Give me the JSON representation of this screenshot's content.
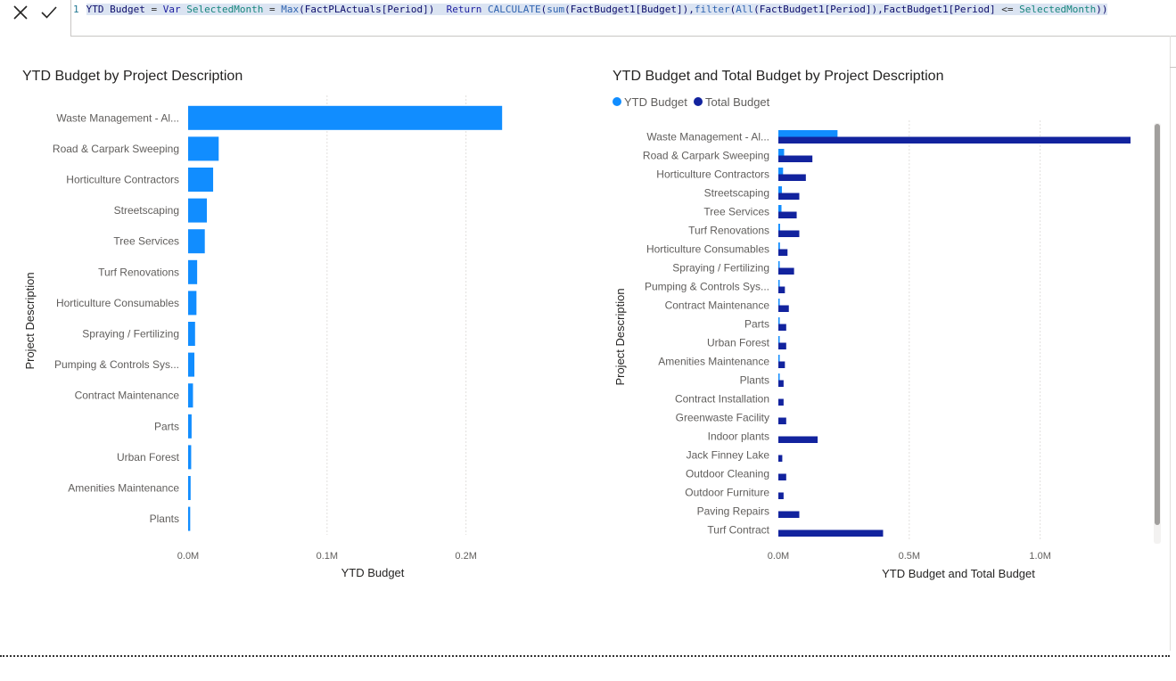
{
  "formula_bar": {
    "cancel_icon": "close-icon",
    "commit_icon": "check-icon",
    "line_number": "1",
    "tokens": [
      {
        "t": "YTD Budget",
        "c": "tk-id"
      },
      {
        "t": " = ",
        "c": "tk-op"
      },
      {
        "t": "Var",
        "c": "tk-kw"
      },
      {
        "t": " SelectedMonth",
        "c": "tk-var"
      },
      {
        "t": " = ",
        "c": "tk-op"
      },
      {
        "t": "Max",
        "c": "tk-fn"
      },
      {
        "t": "(FactPLActuals[Period])  ",
        "c": "tk-id"
      },
      {
        "t": "Return",
        "c": "tk-kw"
      },
      {
        "t": " CALCULATE",
        "c": "tk-fn"
      },
      {
        "t": "(",
        "c": "tk-id"
      },
      {
        "t": "sum",
        "c": "tk-fn"
      },
      {
        "t": "(FactBudget1[Budget]),",
        "c": "tk-id"
      },
      {
        "t": "filter",
        "c": "tk-fn"
      },
      {
        "t": "(",
        "c": "tk-id"
      },
      {
        "t": "All",
        "c": "tk-fn"
      },
      {
        "t": "(FactBudget1[Period]),FactBudget1[Period] ",
        "c": "tk-id"
      },
      {
        "t": "<=",
        "c": "tk-op"
      },
      {
        "t": " SelectedMonth",
        "c": "tk-var"
      },
      {
        "t": "))",
        "c": "tk-id"
      }
    ]
  },
  "chart_data": [
    {
      "type": "bar",
      "orientation": "horizontal",
      "title": "YTD Budget by Project Description",
      "xlabel": "YTD Budget",
      "ylabel": "Project Description",
      "xlim": [
        0,
        0.24
      ],
      "x_ticks": [
        "0.0M",
        "0.1M",
        "0.2M"
      ],
      "x_tick_values": [
        0,
        0.1,
        0.2
      ],
      "grid": true,
      "categories": [
        "Waste Management - Al...",
        "Road & Carpark Sweeping",
        "Horticulture Contractors",
        "Streetscaping",
        "Tree Services",
        "Turf Renovations",
        "Horticulture Consumables",
        "Spraying / Fertilizing",
        "Pumping & Controls Sys...",
        "Contract Maintenance",
        "Parts",
        "Urban Forest",
        "Amenities Maintenance",
        "Plants"
      ],
      "series": [
        {
          "color": "#118dff",
          "values": [
            0.226,
            0.022,
            0.018,
            0.0135,
            0.012,
            0.0065,
            0.006,
            0.005,
            0.0045,
            0.0035,
            0.0025,
            0.0022,
            0.0018,
            0.0015
          ]
        }
      ]
    },
    {
      "type": "bar",
      "orientation": "horizontal",
      "title": "YTD Budget and Total Budget by Project Description",
      "xlabel": "YTD Budget and Total Budget",
      "ylabel": "Project Description",
      "xlim": [
        0,
        1.42
      ],
      "x_ticks": [
        "0.0M",
        "0.5M",
        "1.0M"
      ],
      "x_tick_values": [
        0,
        0.5,
        1.0
      ],
      "grid": true,
      "legend": {
        "position": "top-left"
      },
      "categories": [
        "Waste Management - Al...",
        "Road & Carpark Sweeping",
        "Horticulture Contractors",
        "Streetscaping",
        "Tree Services",
        "Turf Renovations",
        "Horticulture Consumables",
        "Spraying / Fertilizing",
        "Pumping & Controls Sys...",
        "Contract Maintenance",
        "Parts",
        "Urban Forest",
        "Amenities Maintenance",
        "Plants",
        "Contract Installation",
        "Greenwaste Facility",
        "Indoor plants",
        "Jack Finney Lake",
        "Outdoor Cleaning",
        "Outdoor Furniture",
        "Paving Repairs",
        "Turf Contract"
      ],
      "series": [
        {
          "name": "YTD Budget",
          "color": "#118dff",
          "values": [
            0.226,
            0.022,
            0.018,
            0.0135,
            0.012,
            0.0065,
            0.006,
            0.005,
            0.0045,
            0.0035,
            0.0025,
            0.0022,
            0.0018,
            0.0015,
            0,
            0,
            0,
            0,
            0,
            0,
            0,
            0
          ]
        },
        {
          "name": "Total Budget",
          "color": "#12239e",
          "values": [
            1.345,
            0.13,
            0.105,
            0.08,
            0.07,
            0.08,
            0.035,
            0.06,
            0.025,
            0.04,
            0.03,
            0.03,
            0.025,
            0.02,
            0.02,
            0.03,
            0.15,
            0.015,
            0.03,
            0.02,
            0.08,
            0.4
          ]
        }
      ]
    }
  ]
}
